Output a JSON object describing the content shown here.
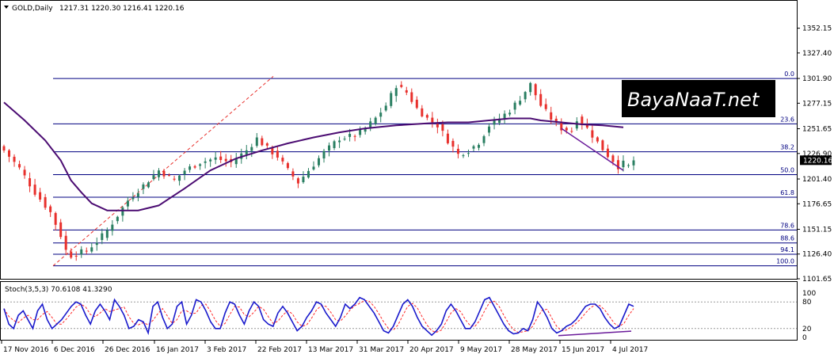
{
  "header": {
    "symbol": "GOLD,Daily",
    "ohlc": "1217.31 1220.30 1216.41 1220.16"
  },
  "indicator_header": "Stoch(3,5,3) 70.6108 41.3290",
  "watermark": {
    "brand": "BayaNaaT.net"
  },
  "colors": {
    "bull": "#2a7f62",
    "bear": "#e8302c",
    "ma": "#4b0c72",
    "fib": "#000080",
    "stoch_main": "#1a1acc",
    "stoch_signal": "#ff2a2a",
    "trend": "#6a1b9a",
    "price_tag_bg": "#000000",
    "price_tag_text": "#ffffff"
  },
  "chart_data": {
    "type": "candlestick",
    "instrument": "GOLD",
    "timeframe": "Daily",
    "price_axis": {
      "range": [
        1101.65,
        1364.5
      ],
      "ticks": [
        "1352.15",
        "1327.40",
        "1301.90",
        "1277.15",
        "1251.65",
        "1226.90",
        "1201.40",
        "1176.65",
        "1151.15",
        "1126.40",
        "1101.65"
      ]
    },
    "current_price": "1220.16",
    "fibonacci": [
      {
        "level": "0.0",
        "price": 1301.9
      },
      {
        "level": "23.6",
        "price": 1256.5
      },
      {
        "level": "38.2",
        "price": 1228.6
      },
      {
        "level": "50.0",
        "price": 1205.8
      },
      {
        "level": "61.8",
        "price": 1183.2
      },
      {
        "level": "78.6",
        "price": 1150.4
      },
      {
        "level": "88.6",
        "price": 1137.5
      },
      {
        "level": "94.1",
        "price": 1126.2
      },
      {
        "level": "100.0",
        "price": 1114.6
      }
    ],
    "date_labels": [
      "17 Nov 2016",
      "6 Dec 2016",
      "26 Dec 2016",
      "16 Jan 2017",
      "3 Feb 2017",
      "22 Feb 2017",
      "13 Mar 2017",
      "31 Mar 2017",
      "20 Apr 2017",
      "9 May 2017",
      "28 May 2017",
      "15 Jun 2017",
      "4 Jul 2017"
    ],
    "close_path": [
      [
        0,
        1230
      ],
      [
        3,
        1212
      ],
      [
        6,
        1188
      ],
      [
        9,
        1168
      ],
      [
        11,
        1145
      ],
      [
        12,
        1130
      ],
      [
        13,
        1125
      ],
      [
        16,
        1130
      ],
      [
        18,
        1139
      ],
      [
        20,
        1150
      ],
      [
        22,
        1165
      ],
      [
        24,
        1180
      ],
      [
        27,
        1195
      ],
      [
        30,
        1210
      ],
      [
        33,
        1200
      ],
      [
        35,
        1210
      ],
      [
        38,
        1218
      ],
      [
        41,
        1222
      ],
      [
        44,
        1218
      ],
      [
        47,
        1230
      ],
      [
        49,
        1242
      ],
      [
        51,
        1232
      ],
      [
        53,
        1224
      ],
      [
        55,
        1210
      ],
      [
        57,
        1198
      ],
      [
        59,
        1210
      ],
      [
        62,
        1228
      ],
      [
        65,
        1242
      ],
      [
        68,
        1245
      ],
      [
        70,
        1252
      ],
      [
        72,
        1262
      ],
      [
        74,
        1275
      ],
      [
        76,
        1295
      ],
      [
        78,
        1288
      ],
      [
        80,
        1272
      ],
      [
        82,
        1262
      ],
      [
        84,
        1255
      ],
      [
        86,
        1240
      ],
      [
        88,
        1226
      ],
      [
        90,
        1230
      ],
      [
        92,
        1238
      ],
      [
        94,
        1255
      ],
      [
        96,
        1262
      ],
      [
        98,
        1270
      ],
      [
        100,
        1282
      ],
      [
        102,
        1296
      ],
      [
        104,
        1275
      ],
      [
        106,
        1262
      ],
      [
        108,
        1252
      ],
      [
        110,
        1250
      ],
      [
        111,
        1262
      ],
      [
        113,
        1252
      ],
      [
        115,
        1238
      ],
      [
        117,
        1225
      ],
      [
        118,
        1220
      ],
      [
        119,
        1214
      ],
      [
        120,
        1217
      ],
      [
        121,
        1214
      ],
      [
        122,
        1220
      ]
    ],
    "ma_path": [
      [
        0,
        1278
      ],
      [
        4,
        1260
      ],
      [
        8,
        1240
      ],
      [
        11,
        1220
      ],
      [
        13,
        1200
      ],
      [
        15,
        1188
      ],
      [
        17,
        1177
      ],
      [
        20,
        1170
      ],
      [
        23,
        1170
      ],
      [
        26,
        1170
      ],
      [
        30,
        1175
      ],
      [
        35,
        1192
      ],
      [
        40,
        1210
      ],
      [
        45,
        1222
      ],
      [
        50,
        1230
      ],
      [
        55,
        1237
      ],
      [
        60,
        1243
      ],
      [
        65,
        1248
      ],
      [
        70,
        1252
      ],
      [
        76,
        1255
      ],
      [
        82,
        1257
      ],
      [
        86,
        1258
      ],
      [
        90,
        1258
      ],
      [
        94,
        1260
      ],
      [
        98,
        1262
      ],
      [
        102,
        1262
      ],
      [
        104,
        1260
      ],
      [
        108,
        1258
      ],
      [
        112,
        1256
      ],
      [
        116,
        1255
      ],
      [
        120,
        1253
      ]
    ],
    "candle_span": 122,
    "stochastic": {
      "params": "3,5,3",
      "main": 70.6108,
      "signal": 41.329,
      "range": [
        0,
        100
      ],
      "ticks": [
        "100",
        "80",
        "20",
        "0"
      ],
      "main_path": [
        65,
        30,
        20,
        50,
        60,
        40,
        20,
        60,
        75,
        40,
        20,
        30,
        40,
        55,
        70,
        80,
        75,
        50,
        30,
        60,
        75,
        60,
        40,
        85,
        70,
        50,
        20,
        25,
        40,
        35,
        10,
        70,
        80,
        45,
        20,
        30,
        70,
        80,
        30,
        50,
        85,
        80,
        60,
        35,
        20,
        20,
        55,
        80,
        75,
        50,
        30,
        60,
        80,
        70,
        40,
        30,
        25,
        55,
        70,
        55,
        35,
        15,
        25,
        45,
        60,
        80,
        75,
        55,
        40,
        25,
        45,
        75,
        65,
        75,
        90,
        85,
        70,
        55,
        35,
        15,
        10,
        25,
        50,
        75,
        85,
        70,
        45,
        25,
        15,
        5,
        15,
        30,
        60,
        75,
        60,
        40,
        20,
        20,
        35,
        60,
        85,
        90,
        70,
        50,
        30,
        15,
        8,
        10,
        20,
        15,
        40,
        80,
        65,
        45,
        20,
        10,
        15,
        25,
        30,
        40,
        55,
        70,
        75,
        75,
        65,
        45,
        30,
        20,
        25,
        50,
        75,
        70
      ]
    },
    "grid": false
  }
}
